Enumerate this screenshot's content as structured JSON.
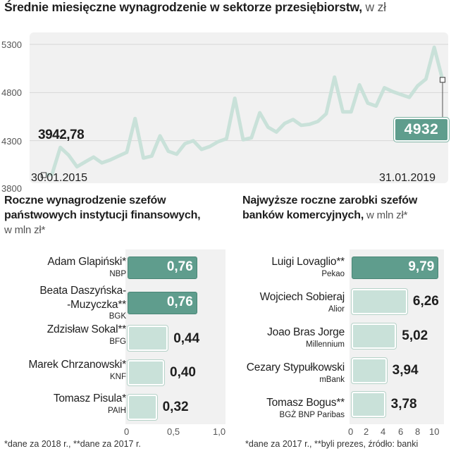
{
  "header": {
    "title": "Średnie miesięczne wynagrodzenie w sektorze przesiębiorstw,",
    "unit": " w zł"
  },
  "line_chart": {
    "start_date": "30.01.2015",
    "end_date": "31.01.2019",
    "start_value_label": "3942,78",
    "end_value_label": "4932",
    "y_tick_labels": [
      "5300",
      "4800",
      "4300",
      "3800"
    ]
  },
  "left_panel": {
    "title_line1": "Roczne wynagrodzenie szefów",
    "title_line2": "państwowych instytucji finansowych,",
    "unit": "w mln zł*",
    "rows": [
      {
        "name": "Adam Glapiński*",
        "org": "NBP",
        "value_label": "0,76"
      },
      {
        "name_line1": "Beata Daszyńska-",
        "name_line2": "-Muzyczka**",
        "org": "BGK",
        "value_label": "0,76"
      },
      {
        "name": "Zdzisław Sokal**",
        "org": "BFG",
        "value_label": "0,44"
      },
      {
        "name": "Marek Chrzanowski*",
        "org": "KNF",
        "value_label": "0,40"
      },
      {
        "name": "Tomasz Pisula*",
        "org": "PAIH",
        "value_label": "0,32"
      }
    ],
    "x_ticks": [
      "0",
      "0,5",
      "1,0"
    ],
    "footnote": "*dane za 2018 r., **dane za 2017 r."
  },
  "right_panel": {
    "title_line1": "Najwyższe roczne zarobki szefów",
    "title_line2": "banków komercyjnych,",
    "unit": " w mln zł*",
    "rows": [
      {
        "name": "Luigi Lovaglio**",
        "org": "Pekao",
        "value_label": "9,79"
      },
      {
        "name": "Wojciech Sobieraj",
        "org": "Alior",
        "value_label": "6,26"
      },
      {
        "name": "Joao Bras Jorge",
        "org": "Millennium",
        "value_label": "5,02"
      },
      {
        "name": "Cezary Stypułkowski",
        "org": "mBank",
        "value_label": "3,94"
      },
      {
        "name": "Tomasz Bogus**",
        "org": "BGŻ BNP Paribas",
        "value_label": "3,78"
      }
    ],
    "x_ticks": [
      "0",
      "2",
      "4",
      "6",
      "8",
      "10"
    ],
    "footnote": "*dane za 2017 r., **byli prezes, źródło: banki"
  },
  "colors": {
    "line": "#c9e1d9",
    "accent": "#5f9d8d",
    "bar_light": "#c9e1d9",
    "panel_bg": "#f1f1f1"
  },
  "chart_data": [
    {
      "type": "line",
      "title": "Średnie miesięczne wynagrodzenie w sektorze przesiębiorstw, w zł",
      "xlabel": "",
      "ylabel": "zł",
      "ylim": [
        3800,
        5300
      ],
      "grid": true,
      "x": [
        "2015-01",
        "2015-02",
        "2015-03",
        "2015-04",
        "2015-05",
        "2015-06",
        "2015-07",
        "2015-08",
        "2015-09",
        "2015-10",
        "2015-11",
        "2015-12",
        "2016-01",
        "2016-02",
        "2016-03",
        "2016-04",
        "2016-05",
        "2016-06",
        "2016-07",
        "2016-08",
        "2016-09",
        "2016-10",
        "2016-11",
        "2016-12",
        "2017-01",
        "2017-02",
        "2017-03",
        "2017-04",
        "2017-05",
        "2017-06",
        "2017-07",
        "2017-08",
        "2017-09",
        "2017-10",
        "2017-11",
        "2017-12",
        "2018-01",
        "2018-02",
        "2018-03",
        "2018-04",
        "2018-05",
        "2018-06",
        "2018-07",
        "2018-08",
        "2018-09",
        "2018-10",
        "2018-11",
        "2018-12",
        "2019-01"
      ],
      "values": [
        3942.78,
        3950,
        4230,
        4150,
        4030,
        4080,
        4130,
        4070,
        4100,
        4140,
        4180,
        4530,
        4120,
        4140,
        4350,
        4190,
        4160,
        4270,
        4300,
        4210,
        4240,
        4290,
        4320,
        4740,
        4310,
        4330,
        4590,
        4440,
        4390,
        4480,
        4520,
        4460,
        4470,
        4500,
        4580,
        4960,
        4600,
        4600,
        4880,
        4690,
        4660,
        4850,
        4810,
        4780,
        4750,
        4870,
        4940,
        5270,
        4932
      ],
      "start_label": "30.01.2015",
      "end_label": "31.01.2019",
      "annotations": [
        "3942,78",
        "4932"
      ]
    },
    {
      "type": "bar",
      "orientation": "horizontal",
      "title": "Roczne wynagrodzenie szefów państwowych instytucji finansowych, w mln zł*",
      "categories": [
        "Adam Glapiński* (NBP)",
        "Beata Daszyńska-Muzyczka** (BGK)",
        "Zdzisław Sokal** (BFG)",
        "Marek Chrzanowski* (KNF)",
        "Tomasz Pisula* (PAIH)"
      ],
      "values": [
        0.76,
        0.76,
        0.44,
        0.4,
        0.32
      ],
      "xlim": [
        0,
        1.0
      ],
      "xlabel": "",
      "ylabel": ""
    },
    {
      "type": "bar",
      "orientation": "horizontal",
      "title": "Najwyższe roczne zarobki szefów banków komercyjnych, w mln zł*",
      "categories": [
        "Luigi Lovaglio** (Pekao)",
        "Wojciech Sobieraj (Alior)",
        "Joao Bras Jorge (Millennium)",
        "Cezary Stypułkowski (mBank)",
        "Tomasz Bogus** (BGŻ BNP Paribas)"
      ],
      "values": [
        9.79,
        6.26,
        5.02,
        3.94,
        3.78
      ],
      "xlim": [
        0,
        10
      ],
      "xlabel": "",
      "ylabel": ""
    }
  ]
}
